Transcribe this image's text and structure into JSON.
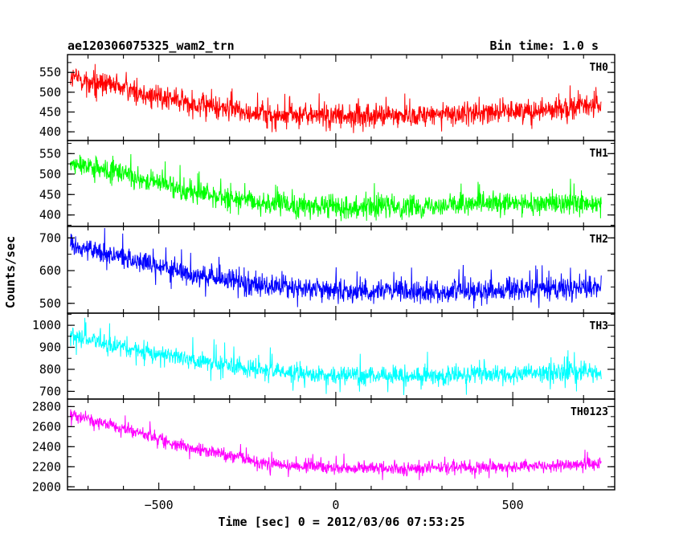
{
  "chart_data": {
    "type": "line",
    "title": "ae120306075325_wam2_trn",
    "subtitle": "Bin time: 1.0 s",
    "xlabel": "Time [sec] 0 = 2012/03/06 07:53:25",
    "ylabel": "Counts/sec",
    "xlim": [
      -750,
      750
    ],
    "x_display_range": [
      -758,
      788
    ],
    "x_ticks": [
      -500,
      0,
      500
    ],
    "x_tick_labels": [
      "−500",
      "0",
      "500"
    ],
    "panels": [
      {
        "name": "TH0",
        "color": "#ff0000",
        "ylim": [
          378,
          595
        ],
        "y_ticks": [
          400,
          450,
          500,
          550
        ],
        "trend_x": [
          -750,
          -600,
          -400,
          -200,
          0,
          200,
          400,
          600,
          750
        ],
        "trend_y": [
          538,
          510,
          470,
          445,
          438,
          442,
          448,
          458,
          468
        ],
        "noise": 26,
        "spike_up": 60,
        "spike_down": 50
      },
      {
        "name": "TH1",
        "color": "#00ff00",
        "ylim": [
          372,
          582
        ],
        "y_ticks": [
          400,
          450,
          500,
          550
        ],
        "trend_x": [
          -750,
          -600,
          -400,
          -200,
          0,
          200,
          400,
          600,
          750
        ],
        "trend_y": [
          525,
          500,
          455,
          428,
          420,
          422,
          425,
          428,
          432
        ],
        "noise": 24,
        "spike_up": 60,
        "spike_down": 40
      },
      {
        "name": "TH2",
        "color": "#0000ff",
        "ylim": [
          470,
          735
        ],
        "y_ticks": [
          500,
          600,
          700
        ],
        "trend_x": [
          -750,
          -600,
          -400,
          -200,
          0,
          200,
          400,
          600,
          750
        ],
        "trend_y": [
          680,
          640,
          585,
          555,
          540,
          535,
          538,
          545,
          550
        ],
        "noise": 30,
        "spike_up": 80,
        "spike_down": 60
      },
      {
        "name": "TH3",
        "color": "#00ffff",
        "ylim": [
          665,
          1055
        ],
        "y_ticks": [
          700,
          800,
          900,
          1000
        ],
        "trend_x": [
          -750,
          -600,
          -400,
          -200,
          0,
          200,
          400,
          600,
          750
        ],
        "trend_y": [
          950,
          900,
          840,
          795,
          775,
          772,
          775,
          782,
          790
        ],
        "noise": 38,
        "spike_up": 110,
        "spike_down": 90
      },
      {
        "name": "TH0123",
        "color": "#ff00ff",
        "ylim": [
          1970,
          2875
        ],
        "y_ticks": [
          2000,
          2200,
          2400,
          2600,
          2800
        ],
        "trend_x": [
          -750,
          -600,
          -400,
          -200,
          0,
          200,
          400,
          600,
          750
        ],
        "trend_y": [
          2720,
          2580,
          2380,
          2230,
          2190,
          2185,
          2195,
          2210,
          2235
        ],
        "noise": 55,
        "spike_up": 150,
        "spike_down": 120
      }
    ],
    "grid": false,
    "legend": "none"
  }
}
